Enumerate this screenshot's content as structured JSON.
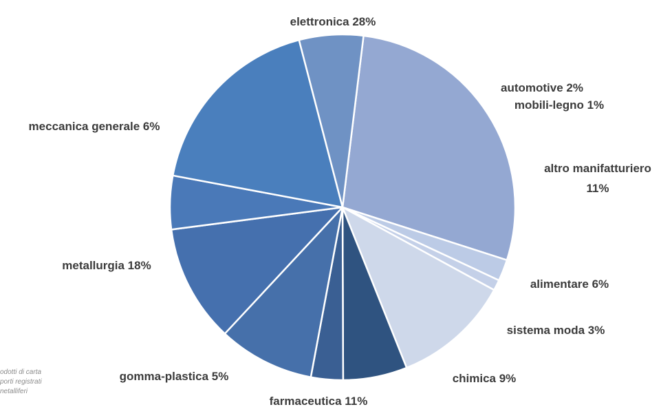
{
  "chart_data": {
    "type": "pie",
    "slices": [
      {
        "label": "elettronica",
        "value": 28,
        "color": "#94a8d2"
      },
      {
        "label": "automotive",
        "value": 2,
        "color": "#bccbe6"
      },
      {
        "label": "mobili-legno",
        "value": 1,
        "color": "#c4d0e8"
      },
      {
        "label": "altro manifatturiero",
        "value": 11,
        "color": "#ced8ea"
      },
      {
        "label": "alimentare",
        "value": 6,
        "color": "#2f5380"
      },
      {
        "label": "sistema moda",
        "value": 3,
        "color": "#3a5f93"
      },
      {
        "label": "chimica",
        "value": 9,
        "color": "#4670aa"
      },
      {
        "label": "farmaceutica",
        "value": 11,
        "color": "#4570ae"
      },
      {
        "label": "gomma-plastica",
        "value": 5,
        "color": "#4a79b8"
      },
      {
        "label": "metallurgia",
        "value": 18,
        "color": "#4a7fbd"
      },
      {
        "label": "meccanica generale",
        "value": 6,
        "color": "#6f92c4"
      }
    ],
    "label_texts": [
      "elettronica 28%",
      "automotive 2%",
      "mobili-legno 1%",
      [
        "altro manifatturiero",
        "11%"
      ],
      "alimentare 6%",
      "sistema moda 3%",
      "chimica 9%",
      "farmaceutica 11%",
      "gomma-plastica 5%",
      "metallurgia 18%",
      "meccanica generale 6%"
    ],
    "unit": "%"
  },
  "footnote_fragments": [
    "odotti di carta",
    "porti registrati",
    "netalliferi"
  ]
}
